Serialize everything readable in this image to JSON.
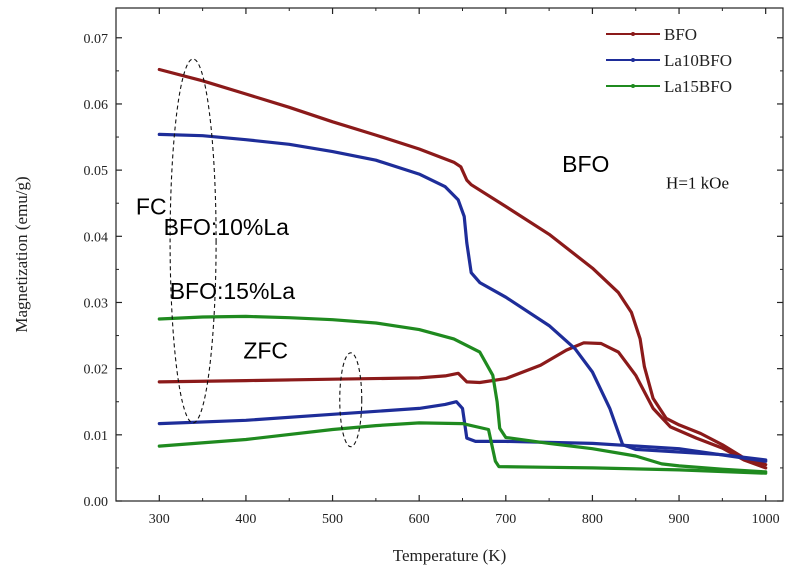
{
  "chart_data": {
    "type": "line",
    "xlabel": "Temperature (K)",
    "ylabel": "Magnetization (emu/g)",
    "xlim": [
      250,
      1020
    ],
    "ylim": [
      0.0,
      0.0745
    ],
    "xticks": [
      300,
      400,
      500,
      600,
      700,
      800,
      900,
      1000
    ],
    "yticks": [
      0.0,
      0.01,
      0.02,
      0.03,
      0.04,
      0.05,
      0.06,
      0.07
    ],
    "xtick_labels": [
      "300",
      "400",
      "500",
      "600",
      "700",
      "800",
      "900",
      "1000"
    ],
    "ytick_labels": [
      "0.00",
      "0.01",
      "0.02",
      "0.03",
      "0.04",
      "0.05",
      "0.06",
      "0.07"
    ],
    "legend_position": "top-right",
    "grid": false,
    "series": [
      {
        "name": "BFO",
        "legend": true,
        "color": "#8b1a1a",
        "curve": "FC",
        "points": [
          [
            300,
            0.0652
          ],
          [
            350,
            0.0635
          ],
          [
            400,
            0.0615
          ],
          [
            450,
            0.0595
          ],
          [
            500,
            0.0573
          ],
          [
            550,
            0.0553
          ],
          [
            600,
            0.0532
          ],
          [
            640,
            0.0512
          ],
          [
            648,
            0.0505
          ],
          [
            655,
            0.0485
          ],
          [
            660,
            0.0478
          ],
          [
            700,
            0.0445
          ],
          [
            750,
            0.0403
          ],
          [
            800,
            0.0352
          ],
          [
            830,
            0.0315
          ],
          [
            845,
            0.0285
          ],
          [
            855,
            0.0245
          ],
          [
            860,
            0.0203
          ],
          [
            870,
            0.0155
          ],
          [
            885,
            0.0125
          ],
          [
            900,
            0.0115
          ],
          [
            925,
            0.0102
          ],
          [
            950,
            0.0085
          ],
          [
            975,
            0.0065
          ],
          [
            1000,
            0.0055
          ]
        ]
      },
      {
        "name": "BFO",
        "legend": false,
        "color": "#8b1a1a",
        "curve": "ZFC",
        "points": [
          [
            300,
            0.018
          ],
          [
            400,
            0.0182
          ],
          [
            500,
            0.0184
          ],
          [
            600,
            0.0186
          ],
          [
            630,
            0.0189
          ],
          [
            645,
            0.0193
          ],
          [
            655,
            0.018
          ],
          [
            670,
            0.0179
          ],
          [
            700,
            0.0185
          ],
          [
            740,
            0.0205
          ],
          [
            770,
            0.0228
          ],
          [
            790,
            0.0239
          ],
          [
            810,
            0.0238
          ],
          [
            830,
            0.0225
          ],
          [
            850,
            0.019
          ],
          [
            870,
            0.014
          ],
          [
            890,
            0.0112
          ],
          [
            920,
            0.0095
          ],
          [
            950,
            0.008
          ],
          [
            975,
            0.0062
          ],
          [
            1000,
            0.005
          ]
        ]
      },
      {
        "name": "La10BFO",
        "legend": true,
        "color": "#1e2d99",
        "curve": "FC",
        "points": [
          [
            300,
            0.0554
          ],
          [
            350,
            0.0552
          ],
          [
            400,
            0.0546
          ],
          [
            450,
            0.0539
          ],
          [
            500,
            0.0528
          ],
          [
            550,
            0.0515
          ],
          [
            600,
            0.0494
          ],
          [
            630,
            0.0475
          ],
          [
            645,
            0.0455
          ],
          [
            652,
            0.043
          ],
          [
            655,
            0.039
          ],
          [
            660,
            0.0345
          ],
          [
            670,
            0.033
          ],
          [
            700,
            0.0308
          ],
          [
            750,
            0.0265
          ],
          [
            780,
            0.023
          ],
          [
            800,
            0.0195
          ],
          [
            820,
            0.014
          ],
          [
            835,
            0.0085
          ],
          [
            850,
            0.0078
          ],
          [
            900,
            0.0074
          ],
          [
            950,
            0.007
          ],
          [
            1000,
            0.0062
          ]
        ]
      },
      {
        "name": "La10BFO",
        "legend": false,
        "color": "#1e2d99",
        "curve": "ZFC",
        "points": [
          [
            300,
            0.0117
          ],
          [
            400,
            0.0122
          ],
          [
            500,
            0.0131
          ],
          [
            600,
            0.014
          ],
          [
            630,
            0.0146
          ],
          [
            643,
            0.015
          ],
          [
            650,
            0.014
          ],
          [
            655,
            0.0095
          ],
          [
            665,
            0.009
          ],
          [
            700,
            0.009
          ],
          [
            800,
            0.0087
          ],
          [
            900,
            0.0079
          ],
          [
            1000,
            0.006
          ]
        ]
      },
      {
        "name": "La15BFO",
        "legend": true,
        "color": "#1f8a1f",
        "curve": "FC",
        "points": [
          [
            300,
            0.0275
          ],
          [
            350,
            0.0278
          ],
          [
            400,
            0.0279
          ],
          [
            450,
            0.0277
          ],
          [
            500,
            0.0274
          ],
          [
            550,
            0.0269
          ],
          [
            600,
            0.0259
          ],
          [
            640,
            0.0245
          ],
          [
            670,
            0.0225
          ],
          [
            685,
            0.019
          ],
          [
            690,
            0.015
          ],
          [
            693,
            0.011
          ],
          [
            700,
            0.0096
          ],
          [
            750,
            0.0087
          ],
          [
            800,
            0.0079
          ],
          [
            850,
            0.0068
          ],
          [
            880,
            0.0056
          ],
          [
            900,
            0.0053
          ],
          [
            950,
            0.0048
          ],
          [
            1000,
            0.0044
          ]
        ]
      },
      {
        "name": "La15BFO",
        "legend": false,
        "color": "#1f8a1f",
        "curve": "ZFC",
        "points": [
          [
            300,
            0.0083
          ],
          [
            400,
            0.0093
          ],
          [
            500,
            0.0108
          ],
          [
            550,
            0.0114
          ],
          [
            600,
            0.0118
          ],
          [
            650,
            0.0117
          ],
          [
            680,
            0.0108
          ],
          [
            688,
            0.006
          ],
          [
            692,
            0.0052
          ],
          [
            750,
            0.0051
          ],
          [
            800,
            0.005
          ],
          [
            900,
            0.0047
          ],
          [
            1000,
            0.0042
          ]
        ]
      }
    ],
    "annotations": [
      {
        "text": "BFO",
        "style": "sans",
        "x": 765,
        "y": 0.0497
      },
      {
        "text": "BFO:10%La",
        "style": "sans",
        "x": 305,
        "y": 0.0402
      },
      {
        "text": "BFO:15%La",
        "style": "sans",
        "x": 312,
        "y": 0.0305
      },
      {
        "text": "FC",
        "style": "sans",
        "x": 273,
        "y": 0.0433
      },
      {
        "text": "ZFC",
        "style": "sans",
        "x": 397,
        "y": 0.0215
      },
      {
        "text": "H=1 kOe",
        "style": "serif",
        "x": 885,
        "y": 0.0472
      }
    ],
    "ellipses": [
      {
        "cx": 339,
        "cy": 0.0393,
        "rx": 23,
        "ry": 0.0275
      },
      {
        "cx": 521,
        "cy": 0.0153,
        "rx": 11,
        "ry": 0.0071
      }
    ]
  }
}
